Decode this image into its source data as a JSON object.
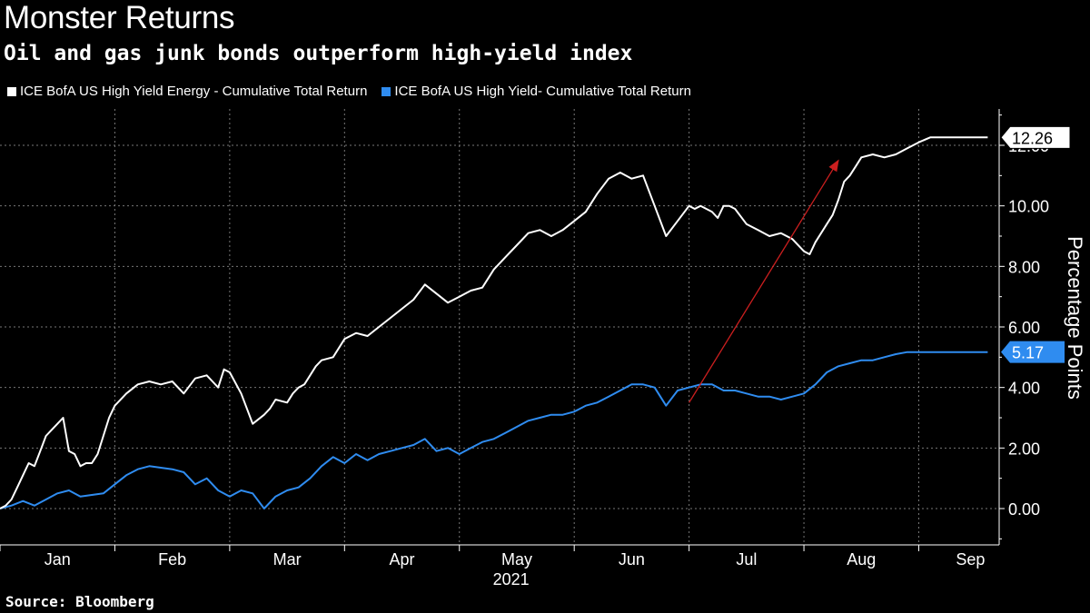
{
  "header": {
    "title": "Monster Returns",
    "subtitle": "Oil and gas junk bonds outperform high-yield index"
  },
  "legend": [
    {
      "label": "ICE BofA US High Yield Energy - Cumulative Total Return",
      "color": "#ffffff"
    },
    {
      "label": "ICE BofA US High Yield- Cumulative Total Return",
      "color": "#2f8cf0"
    }
  ],
  "footer": {
    "source": "Source: Bloomberg"
  },
  "chart_data": {
    "type": "line",
    "title": "Monster Returns",
    "subtitle": "Oil and gas junk bonds outperform high-yield index",
    "xlabel": "2021",
    "ylabel": "Percentage Points",
    "ylim": [
      -1.2,
      13.2
    ],
    "yticks": [
      0,
      2,
      4,
      6,
      8,
      10,
      12
    ],
    "ytick_labels": [
      "0.00",
      "2.00",
      "4.00",
      "6.00",
      "8.00",
      "10.00",
      "12.00"
    ],
    "x_range": [
      0,
      8.7
    ],
    "month_labels": [
      "Jan",
      "Feb",
      "Mar",
      "Apr",
      "May",
      "Jun",
      "Jul",
      "Aug",
      "Sep"
    ],
    "year_label": "2021",
    "grid": true,
    "series": [
      {
        "name": "ICE BofA US High Yield Energy - Cumulative Total Return",
        "color": "#ffffff",
        "last_value_label": "12.26",
        "x": [
          0,
          0.05,
          0.1,
          0.15,
          0.2,
          0.25,
          0.3,
          0.35,
          0.4,
          0.45,
          0.5,
          0.55,
          0.6,
          0.65,
          0.7,
          0.75,
          0.8,
          0.85,
          0.9,
          0.95,
          1.0,
          1.1,
          1.2,
          1.3,
          1.4,
          1.5,
          1.6,
          1.7,
          1.8,
          1.85,
          1.9,
          1.95,
          2.0,
          2.1,
          2.2,
          2.3,
          2.35,
          2.4,
          2.5,
          2.55,
          2.6,
          2.65,
          2.7,
          2.75,
          2.8,
          2.9,
          3.0,
          3.1,
          3.2,
          3.3,
          3.4,
          3.5,
          3.6,
          3.7,
          3.8,
          3.9,
          4.0,
          4.1,
          4.2,
          4.3,
          4.4,
          4.5,
          4.6,
          4.7,
          4.8,
          4.9,
          5.0,
          5.1,
          5.2,
          5.3,
          5.4,
          5.5,
          5.6,
          5.7,
          5.8,
          5.9,
          6.0,
          6.05,
          6.1,
          6.15,
          6.2,
          6.25,
          6.3,
          6.35,
          6.4,
          6.5,
          6.6,
          6.7,
          6.8,
          6.9,
          7.0,
          7.05,
          7.1,
          7.2,
          7.25,
          7.3,
          7.35,
          7.4,
          7.45,
          7.5,
          7.6,
          7.7,
          7.8,
          7.9,
          8.0,
          8.1,
          8.2,
          8.3,
          8.4,
          8.5,
          8.6
        ],
        "values": [
          0,
          0.1,
          0.3,
          0.7,
          1.1,
          1.5,
          1.4,
          1.9,
          2.4,
          2.6,
          2.8,
          3.0,
          1.9,
          1.8,
          1.4,
          1.5,
          1.5,
          1.8,
          2.4,
          3.0,
          3.4,
          3.8,
          4.1,
          4.2,
          4.1,
          4.2,
          3.8,
          4.3,
          4.4,
          4.2,
          4.0,
          4.6,
          4.5,
          3.8,
          2.8,
          3.1,
          3.3,
          3.6,
          3.5,
          3.8,
          4.0,
          4.1,
          4.4,
          4.7,
          4.9,
          5.0,
          5.6,
          5.8,
          5.7,
          6.0,
          6.3,
          6.6,
          6.9,
          7.4,
          7.1,
          6.8,
          7.0,
          7.2,
          7.3,
          7.9,
          8.3,
          8.7,
          9.1,
          9.2,
          9.0,
          9.2,
          9.5,
          9.8,
          10.4,
          10.9,
          11.1,
          10.9,
          11.0,
          10.0,
          9.0,
          9.5,
          10.0,
          9.9,
          10.0,
          9.9,
          9.8,
          9.6,
          10.0,
          10.0,
          9.9,
          9.4,
          9.2,
          9.0,
          9.1,
          8.9,
          8.5,
          8.4,
          8.8,
          9.4,
          9.7,
          10.2,
          10.8,
          11.0,
          11.3,
          11.6,
          11.7,
          11.6,
          11.7,
          11.9,
          12.1,
          12.26,
          12.26,
          12.26,
          12.26,
          12.26,
          12.26
        ]
      },
      {
        "name": "ICE BofA US High Yield- Cumulative Total Return",
        "color": "#2f8cf0",
        "last_value_label": "5.17",
        "x": [
          0,
          0.1,
          0.2,
          0.3,
          0.4,
          0.5,
          0.6,
          0.7,
          0.8,
          0.9,
          1.0,
          1.1,
          1.2,
          1.3,
          1.4,
          1.5,
          1.6,
          1.7,
          1.8,
          1.9,
          2.0,
          2.1,
          2.2,
          2.3,
          2.4,
          2.5,
          2.6,
          2.7,
          2.8,
          2.9,
          3.0,
          3.1,
          3.2,
          3.3,
          3.4,
          3.5,
          3.6,
          3.7,
          3.8,
          3.9,
          4.0,
          4.1,
          4.2,
          4.3,
          4.4,
          4.5,
          4.6,
          4.7,
          4.8,
          4.9,
          5.0,
          5.1,
          5.2,
          5.3,
          5.4,
          5.5,
          5.6,
          5.7,
          5.8,
          5.9,
          6.0,
          6.1,
          6.2,
          6.3,
          6.4,
          6.5,
          6.6,
          6.7,
          6.8,
          6.9,
          7.0,
          7.1,
          7.2,
          7.3,
          7.4,
          7.5,
          7.6,
          7.7,
          7.8,
          7.9,
          8.0,
          8.1,
          8.2,
          8.3,
          8.4,
          8.5,
          8.6
        ],
        "values": [
          0,
          0.1,
          0.25,
          0.1,
          0.3,
          0.5,
          0.6,
          0.4,
          0.45,
          0.5,
          0.8,
          1.1,
          1.3,
          1.4,
          1.35,
          1.3,
          1.2,
          0.8,
          1.0,
          0.6,
          0.4,
          0.6,
          0.5,
          0.0,
          0.4,
          0.6,
          0.7,
          1.0,
          1.4,
          1.7,
          1.5,
          1.8,
          1.6,
          1.8,
          1.9,
          2.0,
          2.1,
          2.3,
          1.9,
          2.0,
          1.8,
          2.0,
          2.2,
          2.3,
          2.5,
          2.7,
          2.9,
          3.0,
          3.1,
          3.1,
          3.2,
          3.4,
          3.5,
          3.7,
          3.9,
          4.1,
          4.1,
          4.0,
          3.4,
          3.9,
          4.0,
          4.1,
          4.1,
          3.9,
          3.9,
          3.8,
          3.7,
          3.7,
          3.6,
          3.7,
          3.8,
          4.1,
          4.5,
          4.7,
          4.8,
          4.9,
          4.9,
          5.0,
          5.1,
          5.17,
          5.17,
          5.17,
          5.17,
          5.17,
          5.17,
          5.17,
          5.17
        ]
      }
    ],
    "annotation": {
      "type": "arrow",
      "color": "#cc1f1f",
      "from": [
        6.0,
        3.5
      ],
      "to": [
        7.3,
        11.5
      ]
    }
  }
}
